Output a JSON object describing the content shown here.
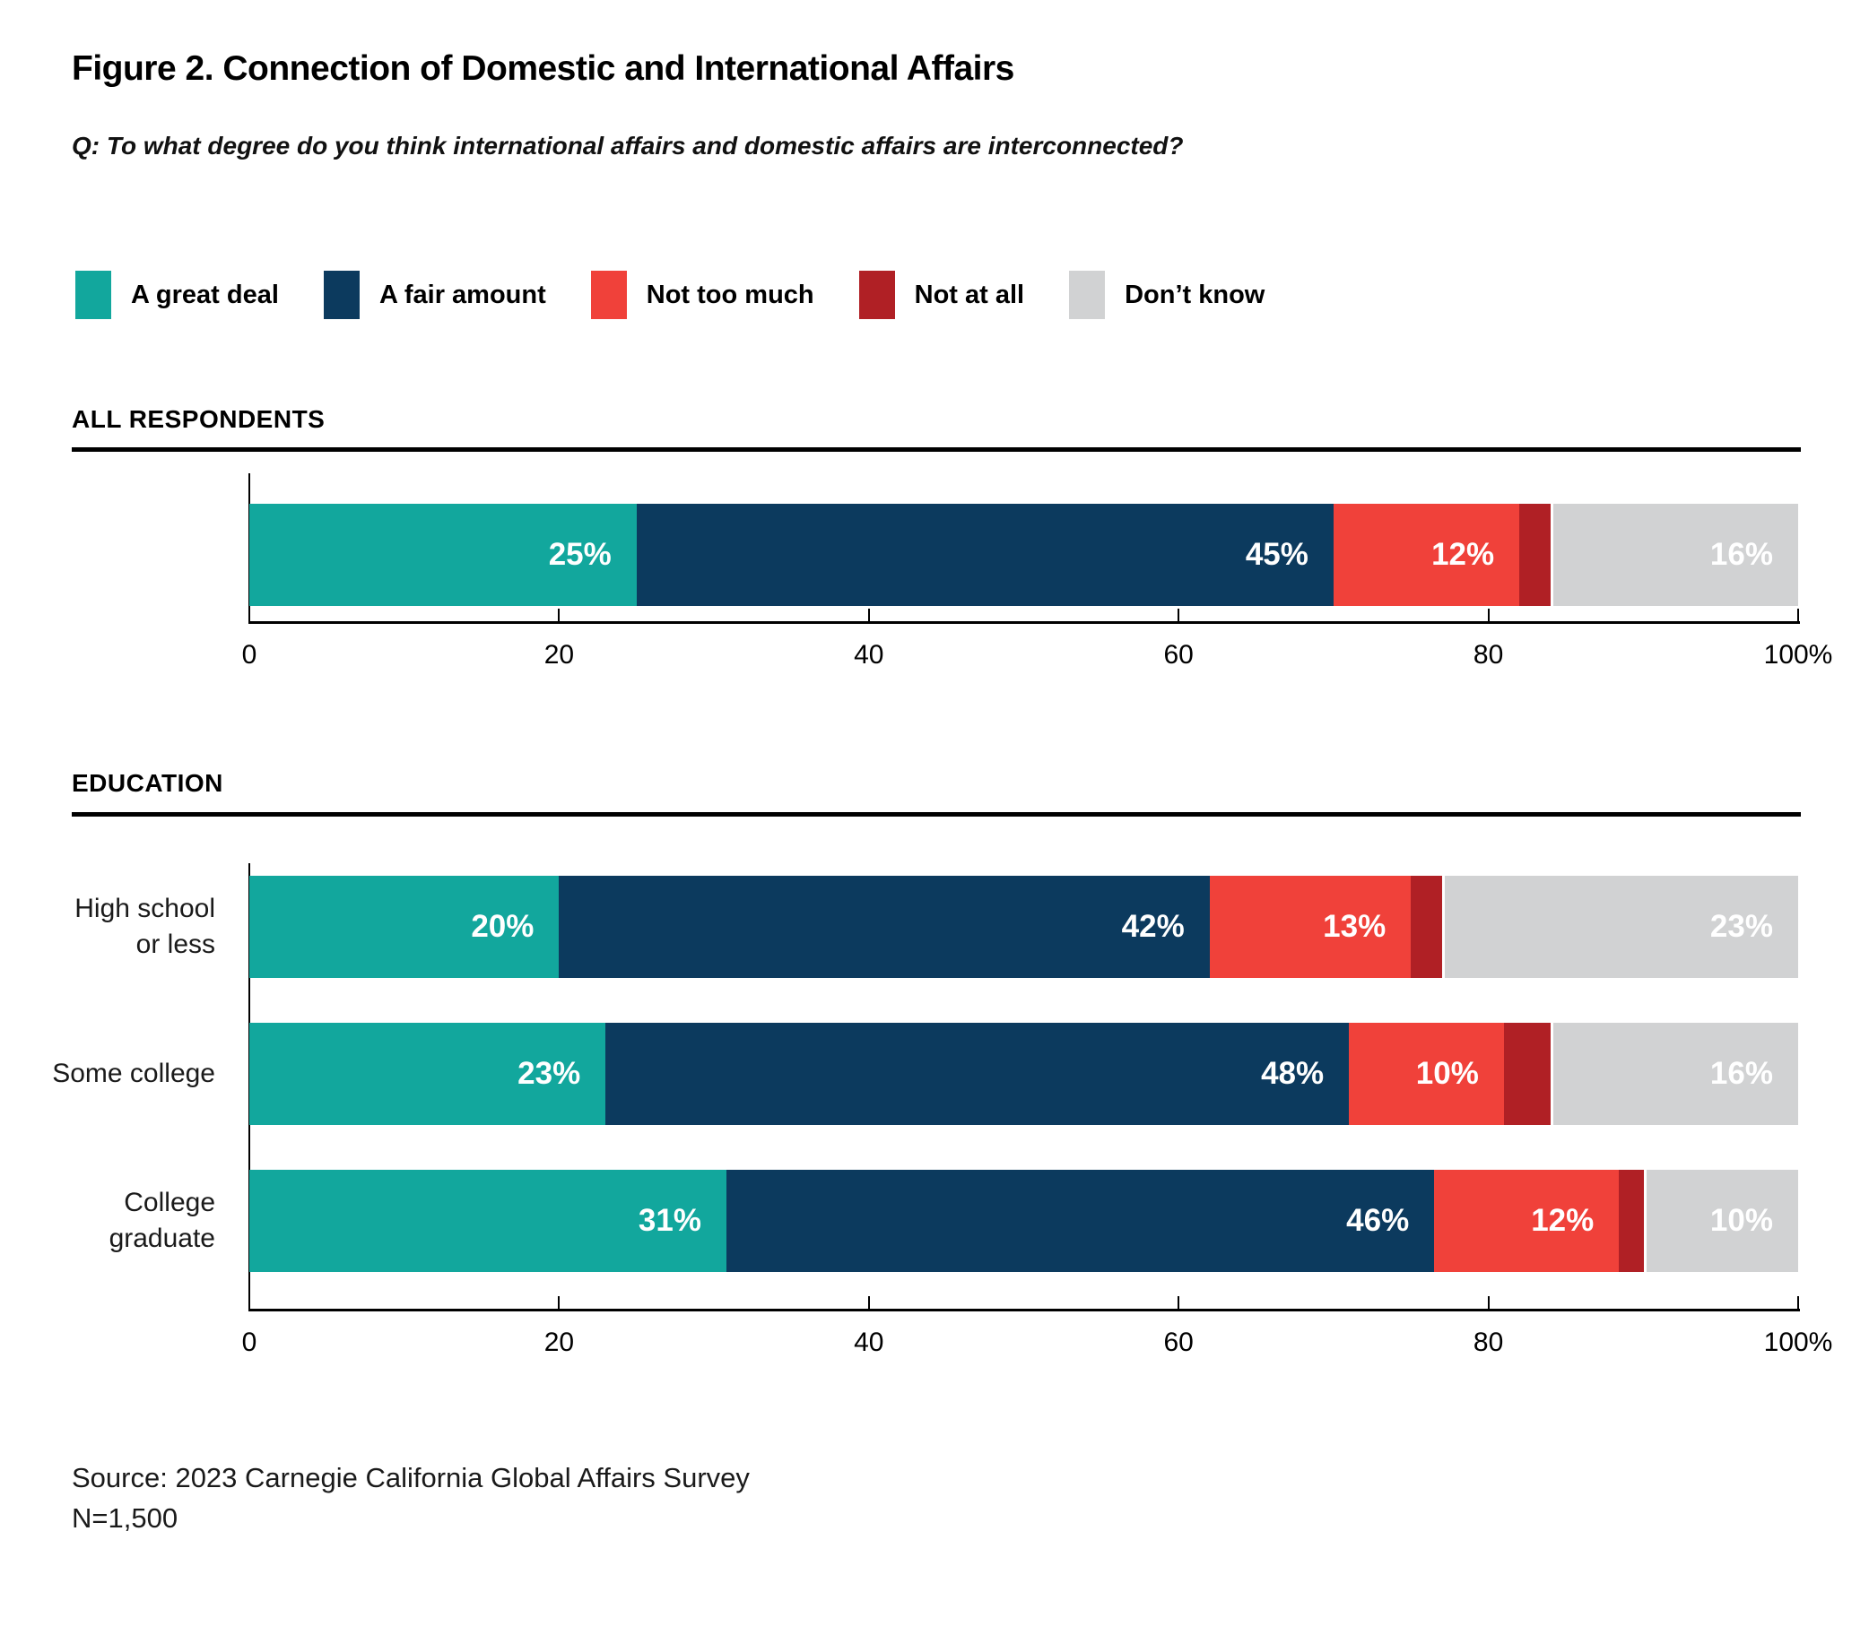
{
  "title": "Figure 2. Connection of Domestic and International Affairs",
  "question": "Q: To what degree do you think international affairs and domestic affairs are interconnected?",
  "sections": [
    {
      "title": "ALL RESPONDENTS"
    },
    {
      "title": "EDUCATION"
    }
  ],
  "legend": {
    "items": [
      {
        "label": "A great deal",
        "color": "#12A79D"
      },
      {
        "label": "A fair amount",
        "color": "#0C3A5E"
      },
      {
        "label": "Not too much",
        "color": "#F0413A"
      },
      {
        "label": "Not at all",
        "color": "#B02025"
      },
      {
        "label": "Don’t know",
        "color": "#D1D2D3"
      }
    ]
  },
  "axis": {
    "tick_values": [
      0,
      20,
      40,
      60,
      80,
      100
    ],
    "tick_labels": [
      "0",
      "20",
      "40",
      "60",
      "80",
      "100%"
    ]
  },
  "chart_data": [
    {
      "type": "bar",
      "subtype": "stacked-horizontal",
      "section": "ALL RESPONDENTS",
      "categories": [
        "All respondents"
      ],
      "category_lines": [
        []
      ],
      "series": [
        {
          "name": "A great deal",
          "color": "#12A79D",
          "values": [
            25
          ]
        },
        {
          "name": "A fair amount",
          "color": "#0C3A5E",
          "values": [
            45
          ]
        },
        {
          "name": "Not too much",
          "color": "#F0413A",
          "values": [
            12
          ]
        },
        {
          "name": "Not at all",
          "color": "#B02025",
          "values": [
            2
          ]
        },
        {
          "name": "Don’t know",
          "color": "#D1D2D3",
          "values": [
            16
          ]
        }
      ],
      "xlim": [
        0,
        100
      ],
      "grid": false,
      "legend_position": "top",
      "value_label_suffix": "%"
    },
    {
      "type": "bar",
      "subtype": "stacked-horizontal",
      "section": "EDUCATION",
      "categories": [
        "High school or less",
        "Some college",
        "College graduate"
      ],
      "category_lines": [
        [
          "High school",
          "or less"
        ],
        [
          "Some college"
        ],
        [
          "College",
          "graduate"
        ]
      ],
      "series": [
        {
          "name": "A great deal",
          "color": "#12A79D",
          "values": [
            20,
            23,
            31
          ]
        },
        {
          "name": "A fair amount",
          "color": "#0C3A5E",
          "values": [
            42,
            48,
            46
          ]
        },
        {
          "name": "Not too much",
          "color": "#F0413A",
          "values": [
            13,
            10,
            12
          ]
        },
        {
          "name": "Not at all",
          "color": "#B02025",
          "values": [
            2,
            3,
            1
          ]
        },
        {
          "name": "Don’t know",
          "color": "#D1D2D3",
          "values": [
            23,
            16,
            10
          ]
        }
      ],
      "xlim": [
        0,
        100
      ],
      "grid": false,
      "legend_position": "top",
      "value_label_suffix": "%"
    }
  ],
  "source": {
    "line1": "Source: 2023 Carnegie California Global Affairs Survey",
    "line2": "N=1,500"
  }
}
